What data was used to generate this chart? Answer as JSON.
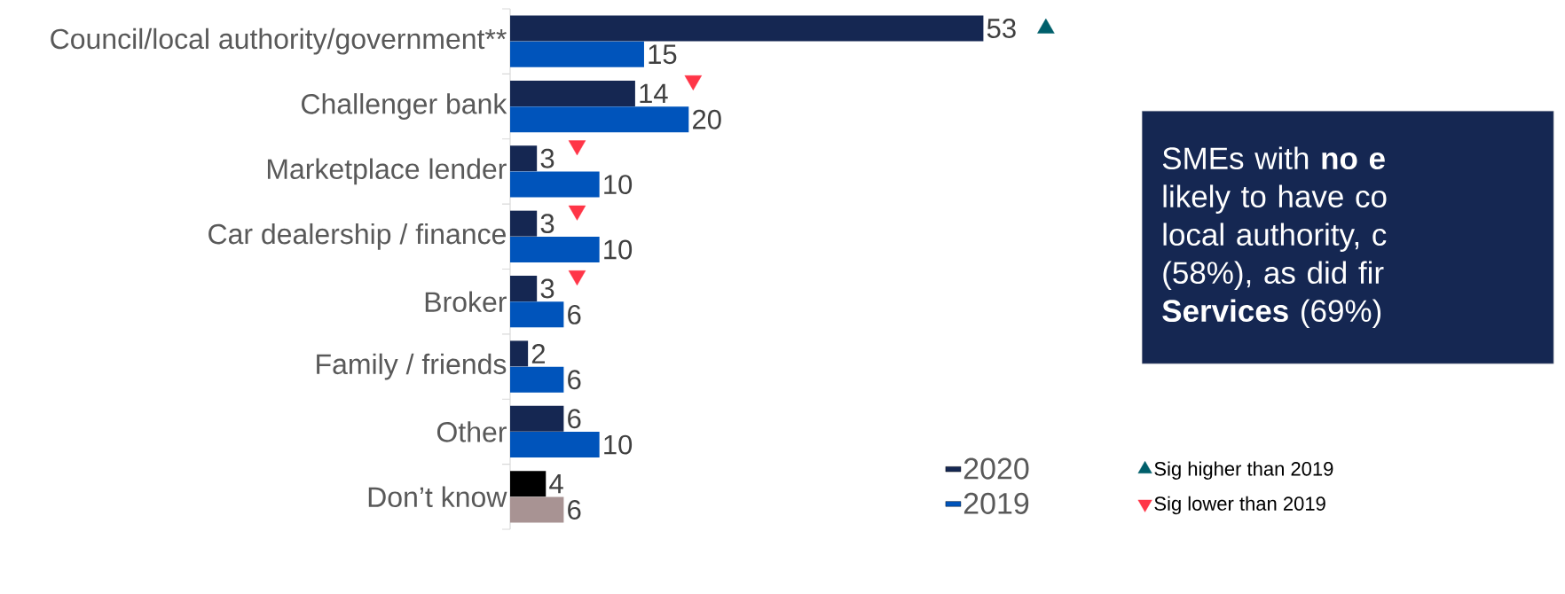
{
  "chart_data": {
    "type": "bar",
    "orientation": "horizontal",
    "legend": "bottom right",
    "categories": [
      "Council/local authority/government**",
      "Challenger bank",
      "Marketplace lender",
      "Car dealership / finance",
      "Broker",
      "Family / friends",
      "Other",
      "Don’t know"
    ],
    "series": [
      {
        "name": "2020",
        "color": "#152752",
        "colors": [
          "#152752",
          "#152752",
          "#152752",
          "#152752",
          "#152752",
          "#152752",
          "#152752",
          "#000000"
        ],
        "values": [
          53,
          14,
          3,
          3,
          3,
          2,
          6,
          4
        ],
        "value_labels": [
          "53",
          "14",
          "3",
          "3",
          "3",
          "2",
          "6",
          "4"
        ]
      },
      {
        "name": "2019",
        "color": "#0054bb",
        "colors": [
          "#0054bb",
          "#0054bb",
          "#0054bb",
          "#0054bb",
          "#0054bb",
          "#0054bb",
          "#0054bb",
          "#a89393"
        ],
        "values": [
          15,
          20,
          10,
          10,
          6,
          6,
          10,
          6
        ],
        "value_labels": [
          "15",
          "20",
          "10",
          "10",
          "6",
          "6",
          "10",
          "6"
        ]
      },
      {
        "name": "Sig higher than 2019",
        "type": "scatter",
        "marker": "triangle",
        "color": "#005f6b",
        "values": [
          60,
          null,
          null,
          null,
          null,
          null,
          null,
          null
        ]
      },
      {
        "name": "Sig lower than 2019",
        "type": "scatter",
        "marker": "triangle",
        "color": "#ff3547",
        "values": [
          null,
          20.5,
          7.5,
          7.5,
          7.5,
          null,
          null,
          null
        ]
      }
    ],
    "annotations": [
      "SMEs with **no e**",
      "likely to have co",
      "local authority, c",
      "(58%), as did fir",
      "**Services** (69%)"
    ]
  }
}
